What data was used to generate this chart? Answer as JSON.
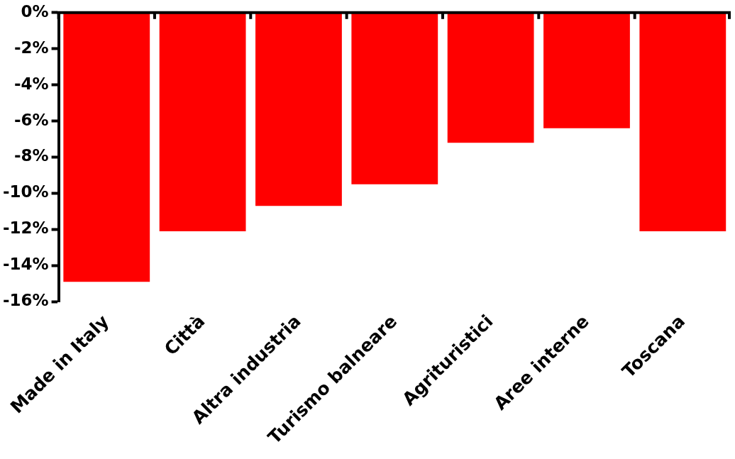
{
  "chart_data": {
    "type": "bar",
    "categories": [
      "Made in Italy",
      "Città",
      "Altra industria",
      "Turismo balneare",
      "Agrituristici",
      "Aree interne",
      "Toscana"
    ],
    "values": [
      -14.9,
      -12.1,
      -10.7,
      -9.5,
      -7.2,
      -6.4,
      -12.1
    ],
    "color": "#ff0000",
    "ylim": [
      -16,
      0
    ],
    "yticks": [
      {
        "value": 0,
        "label": "0%"
      },
      {
        "value": -2,
        "label": "-2%"
      },
      {
        "value": -4,
        "label": "-4%"
      },
      {
        "value": -6,
        "label": "-6%"
      },
      {
        "value": -8,
        "label": "-8%"
      },
      {
        "value": -10,
        "label": "-10%"
      },
      {
        "value": -12,
        "label": "-12%"
      },
      {
        "value": -14,
        "label": "-14%"
      },
      {
        "value": -16,
        "label": "-16%"
      }
    ],
    "grid": false,
    "legend": false
  }
}
